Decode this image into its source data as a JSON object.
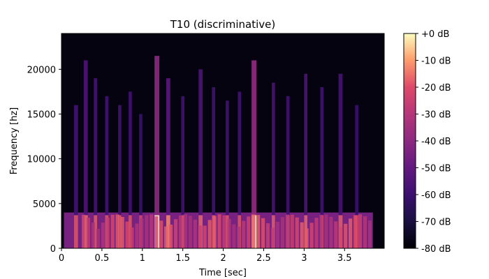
{
  "chart_data": {
    "type": "heatmap",
    "title": "T10 (discriminative)",
    "xlabel": "Time [sec]",
    "ylabel": "Frequency [hz]",
    "xlim": [
      0,
      3.99
    ],
    "ylim": [
      0,
      24000
    ],
    "x_ticks": [
      0,
      0.5,
      1,
      1.5,
      2,
      2.5,
      3,
      3.5
    ],
    "x_tick_labels": [
      "0",
      "0.5",
      "1",
      "1.5",
      "2",
      "2.5",
      "3",
      "3.5"
    ],
    "y_ticks": [
      0,
      5000,
      10000,
      15000,
      20000
    ],
    "y_tick_labels": [
      "0",
      "5000",
      "10000",
      "15000",
      "20000"
    ],
    "colorbar": {
      "label": "",
      "range_db": [
        -80,
        0
      ],
      "ticks": [
        0,
        -10,
        -20,
        -30,
        -40,
        -50,
        -60,
        -70,
        -80
      ],
      "tick_labels": [
        "+0 dB",
        "-10 dB",
        "-20 dB",
        "-30 dB",
        "-40 dB",
        "-50 dB",
        "-60 dB",
        "-70 dB",
        "-80 dB"
      ],
      "colormap": "magma"
    },
    "bursts": [
      {
        "t": 0.18,
        "w": 0.05,
        "peak_hz": 16000,
        "db": -58
      },
      {
        "t": 0.3,
        "w": 0.05,
        "peak_hz": 21000,
        "db": -55
      },
      {
        "t": 0.42,
        "w": 0.04,
        "peak_hz": 19000,
        "db": -57
      },
      {
        "t": 0.56,
        "w": 0.04,
        "peak_hz": 17000,
        "db": -58
      },
      {
        "t": 0.72,
        "w": 0.04,
        "peak_hz": 16000,
        "db": -58
      },
      {
        "t": 0.85,
        "w": 0.04,
        "peak_hz": 17500,
        "db": -58
      },
      {
        "t": 0.98,
        "w": 0.04,
        "peak_hz": 15000,
        "db": -60
      },
      {
        "t": 1.18,
        "w": 0.06,
        "peak_hz": 21500,
        "db": -40
      },
      {
        "t": 1.32,
        "w": 0.05,
        "peak_hz": 19000,
        "db": -52
      },
      {
        "t": 1.5,
        "w": 0.04,
        "peak_hz": 17000,
        "db": -58
      },
      {
        "t": 1.72,
        "w": 0.05,
        "peak_hz": 20000,
        "db": -56
      },
      {
        "t": 1.88,
        "w": 0.04,
        "peak_hz": 18000,
        "db": -58
      },
      {
        "t": 2.05,
        "w": 0.04,
        "peak_hz": 16500,
        "db": -58
      },
      {
        "t": 2.2,
        "w": 0.04,
        "peak_hz": 17500,
        "db": -58
      },
      {
        "t": 2.38,
        "w": 0.06,
        "peak_hz": 21000,
        "db": -38
      },
      {
        "t": 2.62,
        "w": 0.04,
        "peak_hz": 18500,
        "db": -57
      },
      {
        "t": 2.8,
        "w": 0.04,
        "peak_hz": 17000,
        "db": -58
      },
      {
        "t": 3.02,
        "w": 0.04,
        "peak_hz": 19500,
        "db": -56
      },
      {
        "t": 3.22,
        "w": 0.04,
        "peak_hz": 18000,
        "db": -58
      },
      {
        "t": 3.45,
        "w": 0.05,
        "peak_hz": 19500,
        "db": -57
      },
      {
        "t": 3.65,
        "w": 0.04,
        "peak_hz": 16000,
        "db": -60
      }
    ],
    "low_band": {
      "max_hz": 4000,
      "db": -25,
      "bright_max_hz": 2200,
      "bright_db": -10
    }
  }
}
